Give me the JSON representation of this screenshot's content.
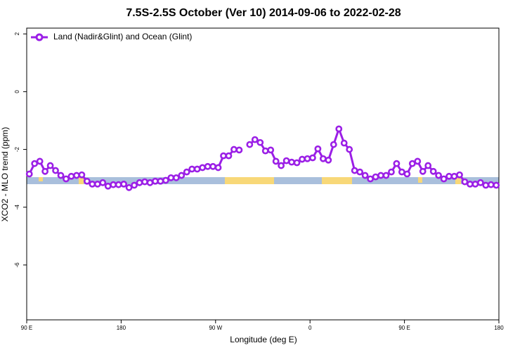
{
  "chart_data": {
    "type": "line",
    "title": "7.5S-2.5S October (Ver 10)   2014-09-06 to 2022-02-28",
    "x_label": "Longitude (deg E)",
    "y_label": "XCO2 - MLO trend (ppm)",
    "x": [
      92.5,
      97.5,
      102.5,
      107.5,
      112.5,
      117.5,
      122.5,
      127.5,
      132.5,
      137.5,
      142.5,
      147.5,
      152.5,
      157.5,
      162.5,
      167.5,
      172.5,
      177.5,
      182.5,
      187.5,
      192.5,
      197.5,
      202.5,
      207.5,
      212.5,
      217.5,
      222.5,
      227.5,
      232.5,
      237.5,
      242.5,
      247.5,
      252.5,
      257.5,
      262.5,
      267.5,
      272.5,
      277.5,
      282.5,
      287.5,
      292.5,
      297.5,
      302.5,
      307.5,
      312.5,
      317.5,
      322.5,
      327.5,
      332.5,
      337.5,
      342.5,
      347.5,
      352.5,
      357.5,
      362.5,
      367.5,
      372.5,
      377.5,
      382.5,
      387.5,
      392.5,
      397.5,
      402.5,
      407.5,
      412.5,
      417.5,
      422.5,
      427.5,
      432.5,
      437.5,
      442.5,
      447.5,
      452.5,
      457.5,
      462.5,
      467.5,
      472.5,
      477.5,
      482.5,
      487.5,
      492.5,
      497.5,
      502.5,
      507.5,
      512.5,
      517.5,
      522.5,
      527.5,
      532.5,
      537.5
    ],
    "series": [
      {
        "name": "Land (Nadir&Glint) and Ocean (Glint)",
        "color": "#9b1fe6",
        "values": [
          -2.85,
          -2.49,
          -2.41,
          -2.76,
          -2.56,
          -2.73,
          -2.9,
          -3.02,
          -2.93,
          -2.9,
          -2.88,
          -3.1,
          -3.2,
          -3.2,
          -3.15,
          -3.27,
          -3.22,
          -3.22,
          -3.2,
          -3.32,
          -3.24,
          -3.15,
          -3.12,
          -3.15,
          -3.1,
          -3.1,
          -3.07,
          -2.98,
          -2.98,
          -2.9,
          -2.78,
          -2.68,
          -2.68,
          -2.63,
          -2.59,
          -2.59,
          -2.63,
          -2.22,
          -2.22,
          -2.0,
          -2.02,
          null,
          -1.83,
          -1.66,
          -1.76,
          -2.05,
          -2.02,
          -2.41,
          -2.56,
          -2.39,
          -2.44,
          -2.46,
          -2.34,
          -2.32,
          -2.29,
          -1.98,
          -2.32,
          -2.37,
          -1.83,
          -1.29,
          -1.78,
          -2.0,
          -2.73,
          -2.78,
          -2.9,
          -3.02,
          -2.95,
          -2.9,
          -2.9,
          -2.78,
          -2.49,
          -2.78,
          -2.85,
          -2.49,
          -2.41,
          -2.76,
          -2.56,
          -2.76,
          -2.9,
          -3.02,
          -2.93,
          -2.93,
          -2.88,
          -3.12,
          -3.2,
          -3.2,
          -3.15,
          -3.24,
          -3.22,
          -3.24
        ]
      }
    ],
    "xlim": [
      90,
      540
    ],
    "xticks": [
      {
        "value": 90,
        "label": "90 E"
      },
      {
        "value": 180,
        "label": "180"
      },
      {
        "value": 270,
        "label": "90 W"
      },
      {
        "value": 360,
        "label": "0"
      },
      {
        "value": 450,
        "label": "90 E"
      },
      {
        "value": 540,
        "label": "180"
      }
    ],
    "ylim": [
      -7.9,
      2.2
    ],
    "yticks": [
      2,
      0,
      -2,
      -4,
      -6
    ],
    "legend": "top-left"
  }
}
